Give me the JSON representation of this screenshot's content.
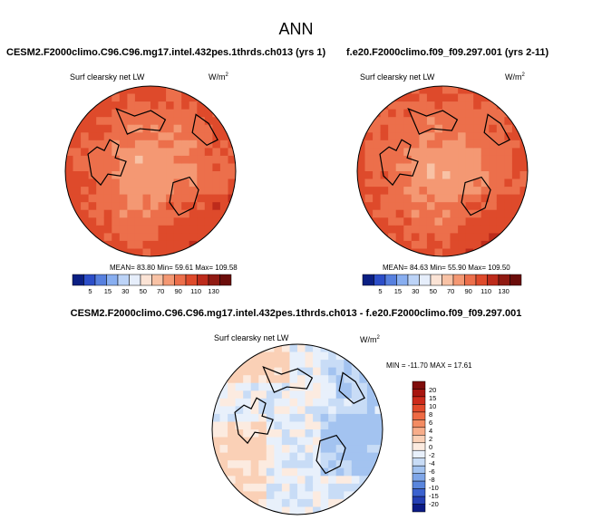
{
  "figure": {
    "main_title": "ANN",
    "diff_title": "CESM2.F2000climo.C96.C96.mg17.intel.432pes.1thrds.ch013 - f.e20.F2000climo.f09_f09.297.001"
  },
  "panels": [
    {
      "case_title": "CESM2.F2000climo.C96.C96.mg17.intel.432pes.1thrds.ch013 (yrs 1)",
      "variable": "Surf clearsky net LW",
      "units_base": "W/m",
      "units_exp": "2",
      "stats": "MEAN=  83.80   Min=  59.61   Max= 109.58"
    },
    {
      "case_title": "f.e20.F2000climo.f09_f09.297.001 (yrs 2-11)",
      "variable": "Surf clearsky net LW",
      "units_base": "W/m",
      "units_exp": "2",
      "stats": "MEAN=  84.63   Min=  55.90   Max= 109.50"
    },
    {
      "variable": "Surf clearsky net LW",
      "units_base": "W/m",
      "units_exp": "2",
      "stats": "MIN = -11.70  MAX =  17.61"
    }
  ],
  "chart_data": [
    {
      "type": "heatmap",
      "projection": "north-polar-stereographic",
      "title": "CESM2.F2000climo.C96.C96.mg17.intel.432pes.1thrds.ch013 (yrs 1)",
      "variable": "Surf clearsky net LW",
      "units": "W/m^2",
      "mean": 83.8,
      "min": 59.61,
      "max": 109.58,
      "colorbar": {
        "orientation": "horizontal",
        "levels": [
          "5",
          "15",
          "30",
          "50",
          "70",
          "90",
          "110",
          "130"
        ],
        "colors": [
          "#0b1f83",
          "#2c4ec8",
          "#5780df",
          "#88aef0",
          "#bcd3f7",
          "#e6eefb",
          "#fbe3d5",
          "#f8c2a5",
          "#f49873",
          "#ec6f4b",
          "#de4a2b",
          "#bd2b1b",
          "#901a12",
          "#6b0d0a"
        ]
      }
    },
    {
      "type": "heatmap",
      "projection": "north-polar-stereographic",
      "title": "f.e20.F2000climo.f09_f09.297.001 (yrs 2-11)",
      "variable": "Surf clearsky net LW",
      "units": "W/m^2",
      "mean": 84.63,
      "min": 55.9,
      "max": 109.5,
      "colorbar": {
        "orientation": "horizontal",
        "levels": [
          "5",
          "15",
          "30",
          "50",
          "70",
          "90",
          "110",
          "130"
        ],
        "colors": [
          "#0b1f83",
          "#2c4ec8",
          "#5780df",
          "#88aef0",
          "#bcd3f7",
          "#e6eefb",
          "#fbe3d5",
          "#f8c2a5",
          "#f49873",
          "#ec6f4b",
          "#de4a2b",
          "#bd2b1b",
          "#901a12",
          "#6b0d0a"
        ]
      }
    },
    {
      "type": "heatmap",
      "projection": "north-polar-stereographic",
      "title": "CESM2.F2000climo.C96.C96.mg17.intel.432pes.1thrds.ch013 - f.e20.F2000climo.f09_f09.297.001",
      "variable": "Surf clearsky net LW",
      "units": "W/m^2",
      "min": -11.7,
      "max": 17.61,
      "colorbar": {
        "orientation": "vertical",
        "levels": [
          "20",
          "15",
          "10",
          "8",
          "6",
          "4",
          "2",
          "0",
          "-2",
          "-4",
          "-6",
          "-8",
          "-10",
          "-15",
          "-20"
        ],
        "colors": [
          "#7f0d0b",
          "#a8150f",
          "#cc2a1b",
          "#e24a2b",
          "#ee6a44",
          "#f38b62",
          "#f7ad8a",
          "#fad0b6",
          "#fcebe0",
          "#e8f0fb",
          "#c8dcf6",
          "#a3c3f0",
          "#7fa6e8",
          "#5a86dd",
          "#3b62cf",
          "#243fb4",
          "#0b1a85"
        ]
      }
    }
  ]
}
